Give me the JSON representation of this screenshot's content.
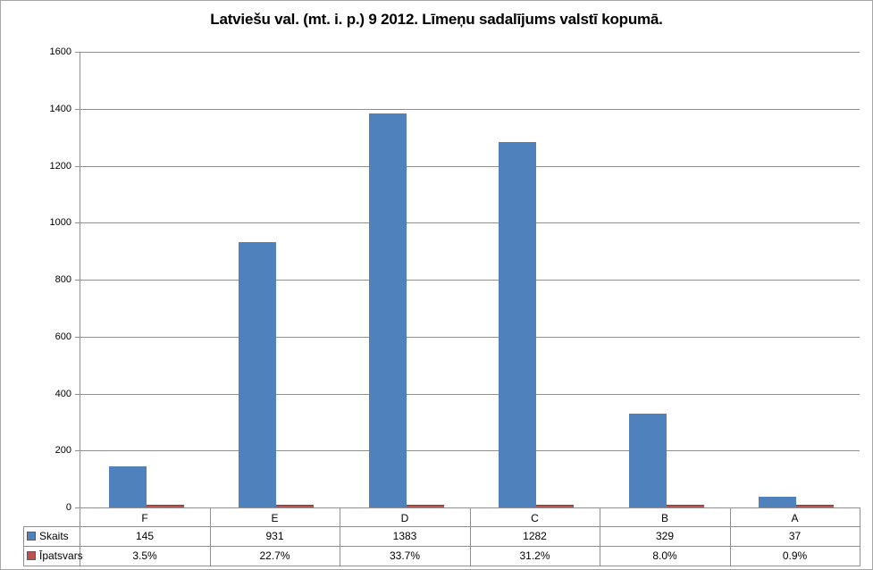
{
  "window": {
    "background": "#ffffff",
    "border_color": "#a6a6a6"
  },
  "chart_data": {
    "type": "bar",
    "title": "Latviešu val. (mt. i. p.) 9 2012. Līmeņu sadalījums valstī kopumā.",
    "categories": [
      "F",
      "E",
      "D",
      "C",
      "B",
      "A"
    ],
    "series": [
      {
        "name": "Skaits",
        "color": "#4F81BD",
        "values": [
          145,
          931,
          1383,
          1282,
          329,
          37
        ],
        "display": [
          "145",
          "931",
          "1383",
          "1282",
          "329",
          "37"
        ]
      },
      {
        "name": "Īpatsvars",
        "color": "#C0504D",
        "values": [
          3.5,
          22.7,
          33.7,
          31.2,
          8.0,
          0.9
        ],
        "display": [
          "3.5%",
          "22.7%",
          "33.7%",
          "31.2%",
          "8.0%",
          "0.9%"
        ]
      }
    ],
    "ylim": [
      0,
      1600
    ],
    "yticks": [
      0,
      200,
      400,
      600,
      800,
      1000,
      1200,
      1400,
      1600
    ],
    "grid": true,
    "grid_color": "#8f8f8f",
    "axis_color": "#8f8f8f",
    "legend_position": "data-table-left"
  }
}
